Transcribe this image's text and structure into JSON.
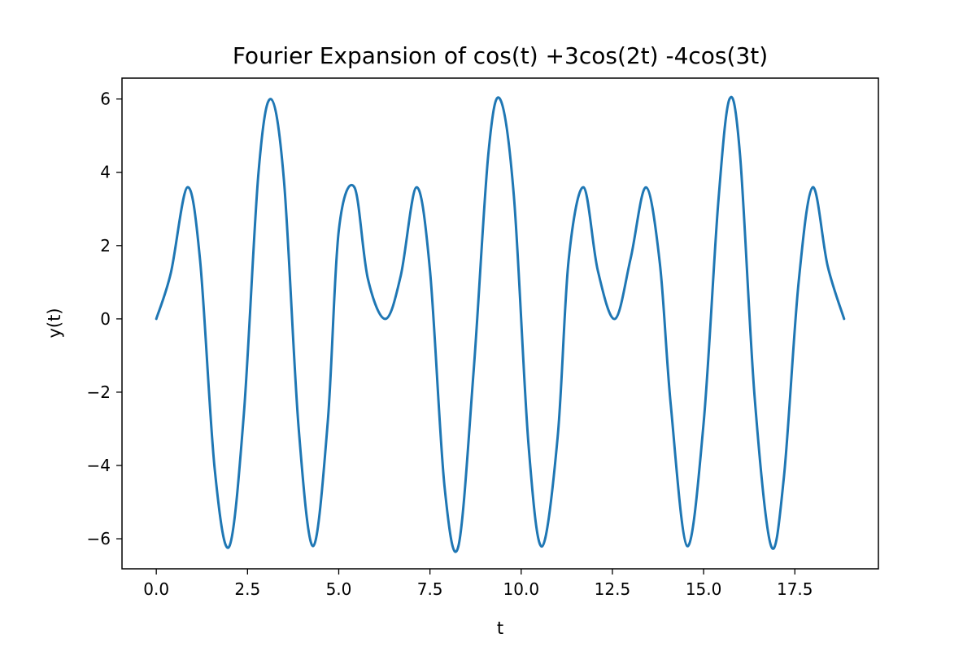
{
  "chart_data": {
    "type": "line",
    "title": "Fourier Expansion of cos(t) +3cos(2t) -4cos(3t)",
    "xlabel": "t",
    "ylabel": "y(t)",
    "xlim": [
      -0.94,
      19.79
    ],
    "ylim": [
      -6.82,
      6.57
    ],
    "xticks": [
      0,
      2.5,
      5,
      7.5,
      10,
      12.5,
      15,
      17.5
    ],
    "xtick_labels": [
      "0.0",
      "2.5",
      "5.0",
      "7.5",
      "10.0",
      "12.5",
      "15.0",
      "17.5"
    ],
    "yticks": [
      -6,
      -4,
      -2,
      0,
      2,
      4,
      6
    ],
    "ytick_labels": [
      "−6",
      "−4",
      "−2",
      "0",
      "2",
      "4",
      "6"
    ],
    "grid": false,
    "series": [
      {
        "color": "#1f77b4",
        "x": [
          0.0,
          0.4,
          0.85,
          1.2,
          1.6,
          2.0,
          2.4,
          2.8,
          3.14,
          3.5,
          3.9,
          4.3,
          4.7,
          5.0,
          5.43,
          5.8,
          6.28,
          6.7,
          7.13,
          7.5,
          7.9,
          8.28,
          8.7,
          9.1,
          9.42,
          9.8,
          10.2,
          10.57,
          11.0,
          11.3,
          11.71,
          12.1,
          12.57,
          13.0,
          13.42,
          13.8,
          14.1,
          14.55,
          15.0,
          15.4,
          15.71,
          16.0,
          16.4,
          16.85,
          17.2,
          17.6,
          17.99,
          18.4,
          18.85
        ],
        "y": [
          0.0,
          1.26,
          3.59,
          1.6,
          -4.09,
          -6.21,
          -2.59,
          3.98,
          6.0,
          3.76,
          -2.96,
          -6.2,
          -2.8,
          2.4,
          3.59,
          1.09,
          0.0,
          1.18,
          3.59,
          1.33,
          -4.58,
          -6.2,
          -1.38,
          4.5,
          6.0,
          3.35,
          -3.42,
          -6.21,
          -3.22,
          1.6,
          3.59,
          1.32,
          0.0,
          1.65,
          3.59,
          1.52,
          -2.35,
          -6.2,
          -2.84,
          3.16,
          6.0,
          4.45,
          -2.16,
          -6.2,
          -4.32,
          0.96,
          3.59,
          1.44,
          0.0
        ]
      }
    ]
  }
}
